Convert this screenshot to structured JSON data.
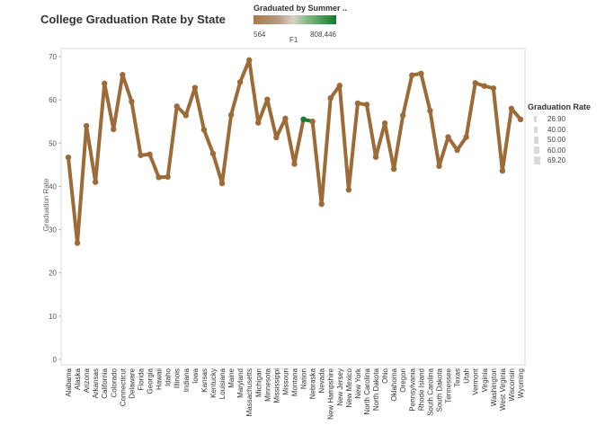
{
  "title": "College Graduation Rate by State",
  "color_legend": {
    "title": "Graduated by Summer ..",
    "min_label": "564",
    "max_label": "808,446",
    "sub_label": "F1"
  },
  "size_legend": {
    "title": "Graduation Rate",
    "items": [
      "26.90",
      "40.00",
      "50.00",
      "60.00",
      "69.20"
    ]
  },
  "chart_data": {
    "type": "line",
    "title": "College Graduation Rate by State",
    "ylabel": "Graduation Rate",
    "xlabel": "",
    "ylim": [
      0,
      72
    ],
    "yticks": [
      0,
      10,
      20,
      30,
      40,
      50,
      60,
      70
    ],
    "grid": false,
    "line_color": "#9c6b38",
    "highlight_color": "#1a7a2e",
    "highlight_segment": [
      "Nation",
      "Nebraska"
    ],
    "categories": [
      "Alabama",
      "Alaska",
      "Arizona",
      "Arkansas",
      "California",
      "Colorado",
      "Connecticut",
      "Delaware",
      "Florida",
      "Georgia",
      "Hawaii",
      "Idaho",
      "Illinois",
      "Indiana",
      "Iowa",
      "Kansas",
      "Kentucky",
      "Louisiana",
      "Maine",
      "Maryland",
      "Massachusetts",
      "Michigan",
      "Minnesota",
      "Mississippi",
      "Missouri",
      "Montana",
      "Nation",
      "Nebraska",
      "Nevada",
      "New Hampshire",
      "New Jersey",
      "New Mexico",
      "New York",
      "North Carolina",
      "North Dakota",
      "Ohio",
      "Oklahoma",
      "Oregon",
      "Pennsylvania",
      "Rhode Island",
      "South Carolina",
      "South Dakota",
      "Tennessee",
      "Texas",
      "Utah",
      "Vermont",
      "Virginia",
      "Washington",
      "West Virginia",
      "Wisconsin",
      "Wyoming"
    ],
    "values": [
      46.7,
      26.9,
      54.0,
      41.0,
      63.8,
      53.2,
      65.8,
      59.6,
      47.2,
      47.4,
      42.1,
      42.2,
      58.5,
      56.4,
      62.8,
      53.1,
      47.6,
      40.7,
      56.5,
      64.1,
      69.2,
      54.7,
      60.1,
      51.3,
      55.7,
      45.2,
      55.5,
      55.0,
      35.9,
      60.4,
      63.3,
      39.2,
      59.2,
      58.9,
      46.8,
      54.6,
      44.0,
      56.4,
      65.7,
      66.1,
      57.5,
      44.7,
      51.4,
      48.4,
      51.4,
      63.9,
      63.2,
      62.7,
      43.6,
      58.0,
      55.5
    ]
  }
}
